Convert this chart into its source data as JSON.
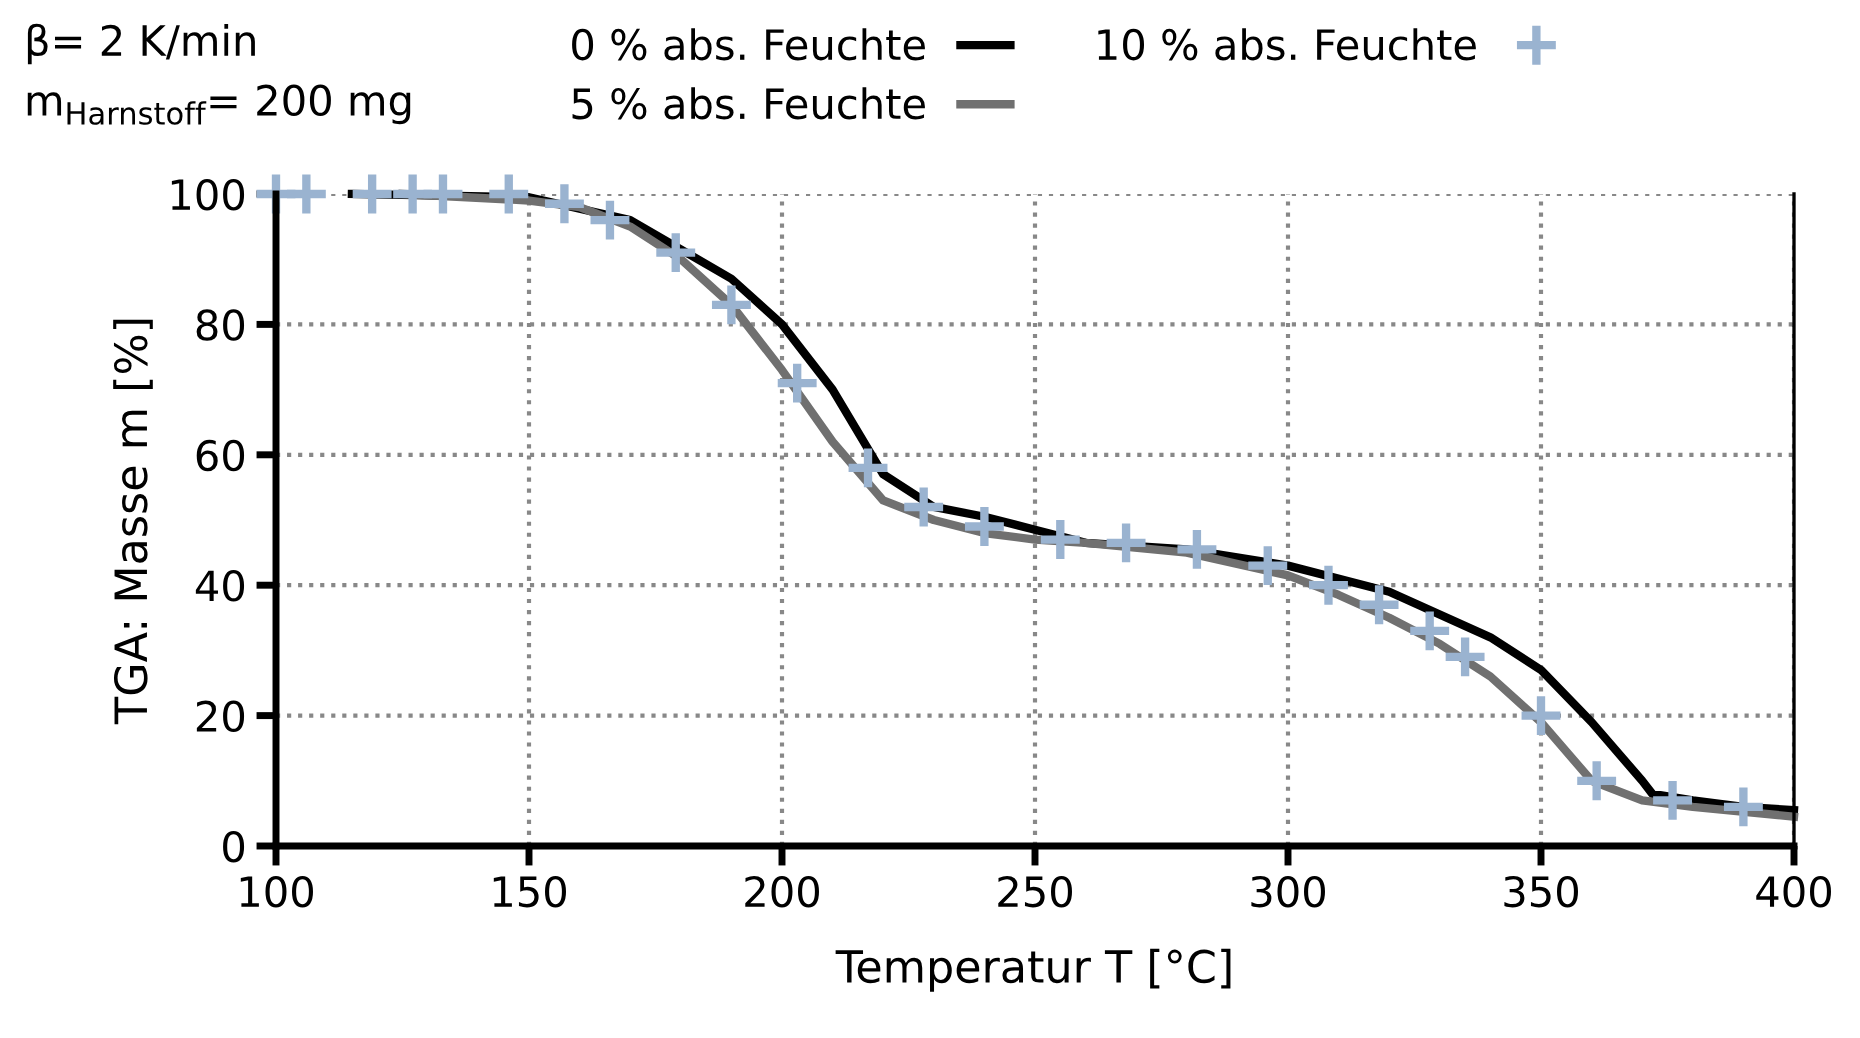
{
  "chart_data": {
    "type": "line",
    "xlabel": "Temperatur T [°C]",
    "ylabel": "TGA: Masse m [%]",
    "annotations": [
      "β= 2 K/min",
      "m$_{Harnstoff}$= 200 mg"
    ],
    "xlim": [
      100,
      400
    ],
    "xticks": [
      100,
      150,
      200,
      250,
      300,
      350,
      400
    ],
    "ylim": [
      0,
      100
    ],
    "yticks": [
      0,
      20,
      40,
      60,
      80,
      100
    ],
    "grid": true,
    "legend": "top",
    "line_style": "solid",
    "series": [
      {
        "name": "0 % abs. Feuchte",
        "color": "#000000",
        "marker": "none",
        "x": [
          115,
          150,
          170,
          190,
          200,
          210,
          220,
          230,
          240,
          250,
          260,
          280,
          300,
          320,
          340,
          350,
          360,
          370,
          372,
          380,
          390,
          400
        ],
        "values": [
          100,
          99.5,
          96,
          87,
          80,
          70,
          57,
          52,
          50.5,
          48.5,
          46.5,
          45.5,
          43,
          39,
          32,
          27,
          19,
          10,
          8,
          7,
          6,
          5.5
        ]
      },
      {
        "name": "5 % abs. Feuchte",
        "color": "#707070",
        "marker": "none",
        "x": [
          125,
          150,
          160,
          170,
          180,
          190,
          200,
          210,
          220,
          230,
          240,
          250,
          260,
          280,
          300,
          310,
          320,
          330,
          340,
          350,
          360,
          370,
          380,
          400
        ],
        "values": [
          100,
          99,
          98,
          95,
          90,
          83,
          73,
          62,
          53,
          50,
          48,
          47,
          46.5,
          45,
          41.5,
          38.5,
          35,
          31,
          26,
          19,
          10,
          7,
          6,
          4.5
        ]
      },
      {
        "name": "10 % abs. Feuchte",
        "type": "scatter",
        "color": "#9ab3d0",
        "marker": "cross",
        "x": [
          100,
          106,
          119,
          127,
          133,
          146,
          157,
          166,
          179,
          190,
          203,
          217,
          228,
          240,
          255,
          268,
          282,
          296,
          308,
          318,
          328,
          335,
          350,
          361,
          376,
          390
        ],
        "values": [
          100,
          100,
          100,
          100,
          100,
          100,
          98.5,
          96,
          91,
          83,
          71,
          58,
          52,
          49,
          47,
          46.5,
          45.5,
          43,
          40,
          37,
          33,
          29,
          20,
          10,
          7,
          6
        ]
      }
    ]
  }
}
